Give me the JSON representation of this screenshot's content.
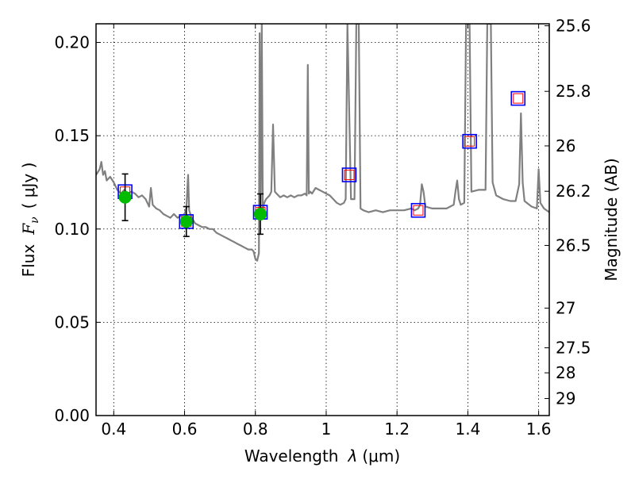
{
  "chart_data": {
    "type": "scatter",
    "xlabel_main": "Wavelength",
    "xlabel_symbol": "λ",
    "xlabel_unit": "(μm)",
    "ylabel_main": "Flux",
    "ylabel_symbol": "F",
    "ylabel_subscript": "ν",
    "ylabel_unit": "( μJy )",
    "y2label": "Magnitude (AB)",
    "xlim": [
      0.35,
      1.63
    ],
    "ylim": [
      0.0,
      0.21
    ],
    "grid": true,
    "x_ticks": [
      {
        "value": 0.4,
        "label": "0.4"
      },
      {
        "value": 0.6,
        "label": "0.6"
      },
      {
        "value": 0.8,
        "label": "0.8"
      },
      {
        "value": 1.0,
        "label": "1"
      },
      {
        "value": 1.2,
        "label": "1.2"
      },
      {
        "value": 1.4,
        "label": "1.4"
      },
      {
        "value": 1.6,
        "label": "1.6"
      }
    ],
    "y_ticks": [
      {
        "value": 0.0,
        "label": "0.00"
      },
      {
        "value": 0.05,
        "label": "0.05"
      },
      {
        "value": 0.1,
        "label": "0.10"
      },
      {
        "value": 0.15,
        "label": "0.15"
      },
      {
        "value": 0.2,
        "label": "0.20"
      }
    ],
    "y2_ticks": [
      {
        "value": 25.6,
        "label": "25.6"
      },
      {
        "value": 25.8,
        "label": "25.8"
      },
      {
        "value": 26.0,
        "label": "26"
      },
      {
        "value": 26.2,
        "label": "26.2"
      },
      {
        "value": 26.5,
        "label": "26.5"
      },
      {
        "value": 27.0,
        "label": "27"
      },
      {
        "value": 27.5,
        "label": "27.5"
      },
      {
        "value": 28.0,
        "label": "28"
      },
      {
        "value": 29.0,
        "label": "29"
      }
    ],
    "series": [
      {
        "type": "line",
        "color": "#808080",
        "points": [
          [
            0.35,
            0.129
          ],
          [
            0.36,
            0.132
          ],
          [
            0.365,
            0.136
          ],
          [
            0.37,
            0.129
          ],
          [
            0.375,
            0.131
          ],
          [
            0.38,
            0.126
          ],
          [
            0.39,
            0.128
          ],
          [
            0.4,
            0.125
          ],
          [
            0.41,
            0.121
          ],
          [
            0.42,
            0.119
          ],
          [
            0.43,
            0.121
          ],
          [
            0.44,
            0.119
          ],
          [
            0.45,
            0.12
          ],
          [
            0.46,
            0.119
          ],
          [
            0.47,
            0.117
          ],
          [
            0.48,
            0.118
          ],
          [
            0.49,
            0.116
          ],
          [
            0.5,
            0.112
          ],
          [
            0.505,
            0.122
          ],
          [
            0.51,
            0.113
          ],
          [
            0.52,
            0.111
          ],
          [
            0.53,
            0.11
          ],
          [
            0.54,
            0.108
          ],
          [
            0.55,
            0.107
          ],
          [
            0.56,
            0.106
          ],
          [
            0.57,
            0.108
          ],
          [
            0.58,
            0.106
          ],
          [
            0.59,
            0.107
          ],
          [
            0.6,
            0.108
          ],
          [
            0.605,
            0.111
          ],
          [
            0.61,
            0.129
          ],
          [
            0.613,
            0.11
          ],
          [
            0.62,
            0.106
          ],
          [
            0.63,
            0.103
          ],
          [
            0.64,
            0.102
          ],
          [
            0.65,
            0.101
          ],
          [
            0.66,
            0.101
          ],
          [
            0.67,
            0.1
          ],
          [
            0.68,
            0.1
          ],
          [
            0.69,
            0.098
          ],
          [
            0.7,
            0.097
          ],
          [
            0.71,
            0.096
          ],
          [
            0.72,
            0.095
          ],
          [
            0.73,
            0.094
          ],
          [
            0.74,
            0.093
          ],
          [
            0.75,
            0.092
          ],
          [
            0.76,
            0.091
          ],
          [
            0.77,
            0.09
          ],
          [
            0.78,
            0.089
          ],
          [
            0.79,
            0.089
          ],
          [
            0.795,
            0.088
          ],
          [
            0.8,
            0.084
          ],
          [
            0.805,
            0.083
          ],
          [
            0.81,
            0.087
          ],
          [
            0.812,
            0.205
          ],
          [
            0.815,
            0.11
          ],
          [
            0.818,
            0.21
          ],
          [
            0.821,
            0.11
          ],
          [
            0.825,
            0.114
          ],
          [
            0.83,
            0.116
          ],
          [
            0.84,
            0.118
          ],
          [
            0.845,
            0.12
          ],
          [
            0.85,
            0.156
          ],
          [
            0.855,
            0.12
          ],
          [
            0.86,
            0.119
          ],
          [
            0.87,
            0.117
          ],
          [
            0.88,
            0.118
          ],
          [
            0.89,
            0.117
          ],
          [
            0.9,
            0.118
          ],
          [
            0.91,
            0.117
          ],
          [
            0.92,
            0.118
          ],
          [
            0.93,
            0.118
          ],
          [
            0.94,
            0.119
          ],
          [
            0.945,
            0.118
          ],
          [
            0.948,
            0.188
          ],
          [
            0.951,
            0.119
          ],
          [
            0.955,
            0.12
          ],
          [
            0.96,
            0.119
          ],
          [
            0.97,
            0.122
          ],
          [
            0.98,
            0.121
          ],
          [
            0.99,
            0.12
          ],
          [
            1.0,
            0.119
          ],
          [
            1.01,
            0.118
          ],
          [
            1.02,
            0.116
          ],
          [
            1.03,
            0.114
          ],
          [
            1.04,
            0.113
          ],
          [
            1.05,
            0.114
          ],
          [
            1.055,
            0.116
          ],
          [
            1.06,
            0.21
          ],
          [
            1.07,
            0.116
          ],
          [
            1.08,
            0.116
          ],
          [
            1.085,
            0.21
          ],
          [
            1.092,
            0.21
          ],
          [
            1.097,
            0.111
          ],
          [
            1.105,
            0.11
          ],
          [
            1.12,
            0.109
          ],
          [
            1.14,
            0.11
          ],
          [
            1.16,
            0.109
          ],
          [
            1.18,
            0.11
          ],
          [
            1.2,
            0.11
          ],
          [
            1.22,
            0.11
          ],
          [
            1.24,
            0.111
          ],
          [
            1.25,
            0.11
          ],
          [
            1.26,
            0.111
          ],
          [
            1.265,
            0.113
          ],
          [
            1.27,
            0.124
          ],
          [
            1.275,
            0.12
          ],
          [
            1.28,
            0.112
          ],
          [
            1.3,
            0.111
          ],
          [
            1.32,
            0.111
          ],
          [
            1.34,
            0.111
          ],
          [
            1.36,
            0.113
          ],
          [
            1.365,
            0.12
          ],
          [
            1.37,
            0.126
          ],
          [
            1.375,
            0.116
          ],
          [
            1.38,
            0.113
          ],
          [
            1.39,
            0.114
          ],
          [
            1.395,
            0.21
          ],
          [
            1.405,
            0.21
          ],
          [
            1.41,
            0.12
          ],
          [
            1.43,
            0.121
          ],
          [
            1.45,
            0.121
          ],
          [
            1.455,
            0.21
          ],
          [
            1.465,
            0.21
          ],
          [
            1.47,
            0.125
          ],
          [
            1.48,
            0.118
          ],
          [
            1.5,
            0.116
          ],
          [
            1.52,
            0.115
          ],
          [
            1.535,
            0.115
          ],
          [
            1.545,
            0.124
          ],
          [
            1.55,
            0.162
          ],
          [
            1.555,
            0.125
          ],
          [
            1.56,
            0.115
          ],
          [
            1.58,
            0.112
          ],
          [
            1.595,
            0.111
          ],
          [
            1.6,
            0.132
          ],
          [
            1.605,
            0.114
          ],
          [
            1.615,
            0.111
          ],
          [
            1.63,
            0.109
          ]
        ]
      },
      {
        "type": "model_photometry",
        "marker": "square",
        "colors": [
          "#0000ff",
          "#ff0000"
        ],
        "points": [
          [
            0.432,
            0.12
          ],
          [
            0.605,
            0.104
          ],
          [
            0.814,
            0.109
          ],
          [
            1.065,
            0.129
          ],
          [
            1.26,
            0.11
          ],
          [
            1.405,
            0.147
          ],
          [
            1.542,
            0.17
          ]
        ]
      },
      {
        "type": "observed",
        "marker": "circle",
        "color": "#00bb00",
        "points": [
          {
            "x": 0.432,
            "y": 0.117,
            "err": 0.0125
          },
          {
            "x": 0.605,
            "y": 0.104,
            "err": 0.008
          },
          {
            "x": 0.814,
            "y": 0.108,
            "err": 0.0108
          }
        ]
      }
    ]
  }
}
